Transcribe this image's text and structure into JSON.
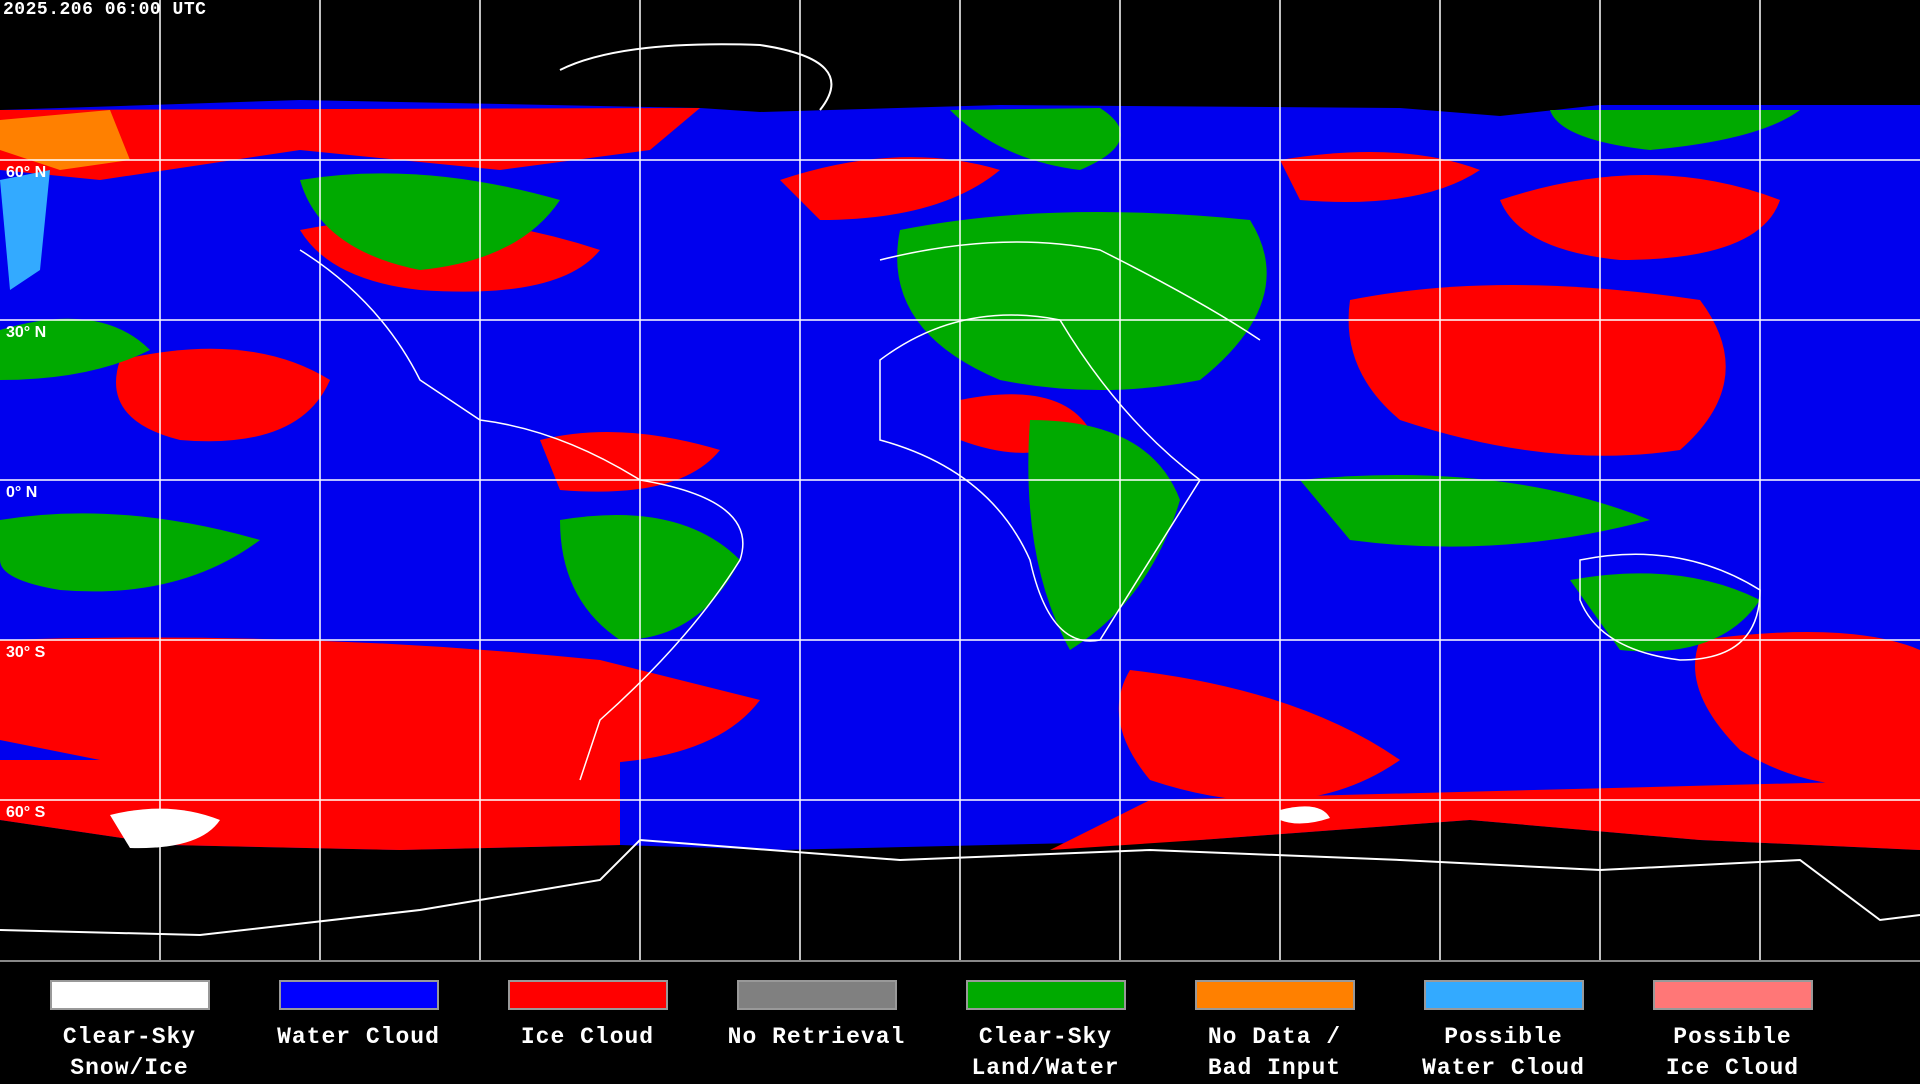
{
  "title": "2025.206 06:00 UTC",
  "lat_labels": [
    "60° N",
    "30° N",
    "0° N",
    "30° S",
    "60° S"
  ],
  "legend": [
    {
      "line1": "Clear-Sky",
      "line2": "Snow/Ice",
      "color": "#ffffff"
    },
    {
      "line1": "Water Cloud",
      "line2": "",
      "color": "#0000ff"
    },
    {
      "line1": "Ice Cloud",
      "line2": "",
      "color": "#ff0000"
    },
    {
      "line1": "No Retrieval",
      "line2": "",
      "color": "#808080"
    },
    {
      "line1": "Clear-Sky",
      "line2": "Land/Water",
      "color": "#00aa00"
    },
    {
      "line1": "No Data /",
      "line2": "Bad Input",
      "color": "#ff8000"
    },
    {
      "line1": "Possible",
      "line2": "Water Cloud",
      "color": "#33aaff"
    },
    {
      "line1": "Possible",
      "line2": "Ice Cloud",
      "color": "#ff7777"
    }
  ]
}
